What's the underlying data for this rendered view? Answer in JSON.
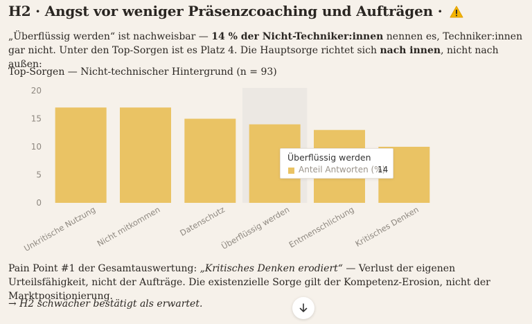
{
  "heading": {
    "text": "H2 · Angst vor weniger Präsenzcoaching und Aufträgen ·",
    "icon": "warning-icon"
  },
  "intro": {
    "part1": "„Überflüssig werden“ ist nachweisbar — ",
    "bold1": "14 % der Nicht-Techniker:innen",
    "part2": " nennen es, Techniker:innen gar nicht. Unter den Top-Sorgen ist es Platz 4. Die Hauptsorge richtet sich ",
    "bold2": "nach innen",
    "part3": ", nicht nach außen:"
  },
  "chart_title": "Top-Sorgen — Nicht-technischer Hintergrund (n = 93)",
  "chart_data": {
    "type": "bar",
    "title": "Top-Sorgen — Nicht-technischer Hintergrund (n = 93)",
    "categories": [
      "Unkritische Nutzung",
      "Nicht mitkommen",
      "Datenschutz",
      "Überflüssig werden",
      "Entmenschlichung",
      "Kritisches Denken"
    ],
    "series": [
      {
        "name": "Anteil Antworten (%)",
        "values": [
          17,
          17,
          15,
          14,
          13,
          10
        ]
      }
    ],
    "ylim": [
      0,
      20
    ],
    "yticks": [
      0,
      5,
      10,
      15,
      20
    ],
    "grid": false,
    "bar_color": "#eac364",
    "highlight_bg": "#ece8e3",
    "highlight_index": 3
  },
  "tooltip": {
    "title": "Überflüssig werden",
    "series_name": "Anteil Antworten (%)",
    "value": "14"
  },
  "pain": {
    "part1": "Pain Point #1 der Gesamtauswertung: ",
    "italic": "„Kritisches Denken erodiert“",
    "part2": " — Verlust der eigenen Urteilsfähigkeit, nicht der Aufträge. Die existenzielle Sorge gilt der Kompetenz-Erosion, nicht der Marktpositionierung."
  },
  "conclusion": "→ H2 schwächer bestätigt als erwartet.",
  "scroll_button": {
    "icon": "arrow-down-icon"
  }
}
